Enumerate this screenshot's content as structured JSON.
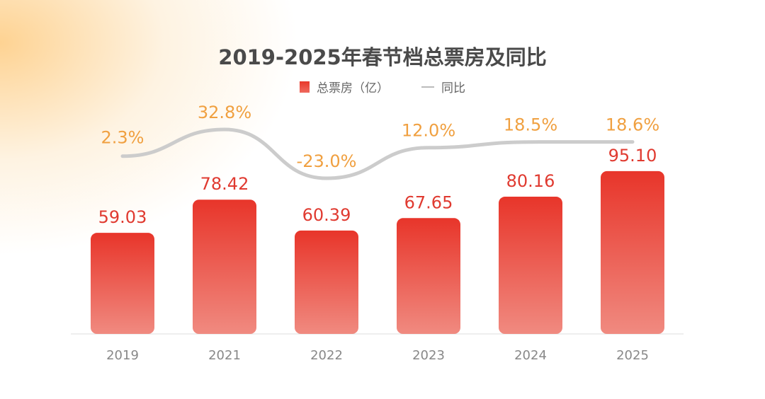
{
  "chart_data": {
    "type": "bar+line",
    "title": "2019-2025年春节档总票房及同比",
    "categories": [
      "2019",
      "2021",
      "2022",
      "2023",
      "2024",
      "2025"
    ],
    "series": [
      {
        "name": "总票房（亿）",
        "type": "bar",
        "values": [
          59.03,
          78.42,
          60.39,
          67.65,
          80.16,
          95.1
        ],
        "labels": [
          "59.03",
          "78.42",
          "60.39",
          "67.65",
          "80.16",
          "95.10"
        ],
        "color": "#e8352a"
      },
      {
        "name": "同比",
        "type": "line",
        "values": [
          2.3,
          32.8,
          -23.0,
          12.0,
          18.5,
          18.6
        ],
        "labels": [
          "2.3%",
          "32.8%",
          "-23.0%",
          "12.0%",
          "18.5%",
          "18.6%"
        ],
        "color": "#cccccc",
        "label_color": "#f0a040"
      }
    ],
    "legend": "top",
    "grid": false
  }
}
